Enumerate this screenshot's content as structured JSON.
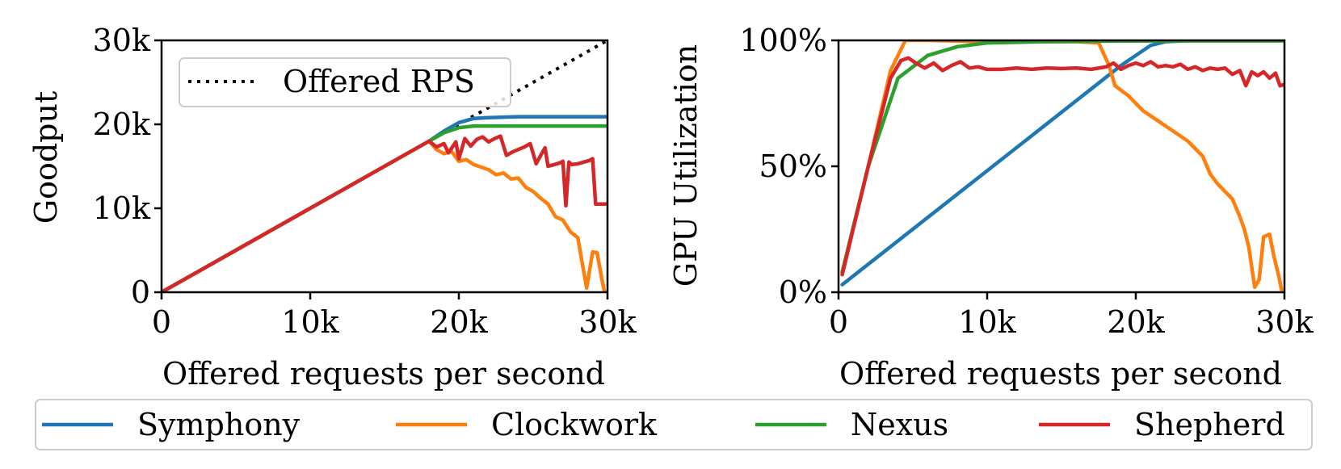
{
  "chart_data": [
    {
      "type": "line",
      "xlabel": "Offered requests per second",
      "ylabel": "Goodput",
      "xlim": [
        0,
        30000
      ],
      "ylim": [
        0,
        30000
      ],
      "xticks": [
        0,
        10000,
        20000,
        30000
      ],
      "xtick_labels": [
        "0",
        "10k",
        "20k",
        "30k"
      ],
      "yticks": [
        0,
        10000,
        20000,
        30000
      ],
      "ytick_labels": [
        "0",
        "10k",
        "20k",
        "30k"
      ],
      "grid": false,
      "legend": {
        "position": "top-left",
        "entries": [
          "Offered RPS"
        ]
      },
      "reference_line": {
        "name": "Offered RPS",
        "style": "dotted",
        "color": "#000000",
        "x": [
          0,
          30000
        ],
        "y": [
          0,
          30000
        ]
      },
      "series": [
        {
          "name": "Symphony",
          "color": "#1f77b4",
          "x": [
            0,
            18000,
            19000,
            20000,
            21000,
            22000,
            24000,
            26000,
            28000,
            30000
          ],
          "y": [
            0,
            18000,
            19200,
            20200,
            20700,
            20800,
            20900,
            20900,
            20900,
            20900
          ]
        },
        {
          "name": "Clockwork",
          "color": "#ff7f0e",
          "x": [
            0,
            18000,
            18500,
            19000,
            19500,
            20000,
            20500,
            21000,
            21500,
            22000,
            22500,
            23000,
            23500,
            24000,
            24500,
            25000,
            25500,
            26000,
            26500,
            27000,
            27500,
            28000,
            28300,
            28600,
            29000,
            29300,
            29600,
            29800
          ],
          "y": [
            0,
            18000,
            17000,
            16500,
            16800,
            15600,
            15800,
            15200,
            14900,
            14600,
            14000,
            14200,
            13500,
            13600,
            12500,
            12000,
            11200,
            10500,
            9000,
            8600,
            7200,
            6500,
            3500,
            500,
            4800,
            4700,
            1800,
            0
          ]
        },
        {
          "name": "Nexus",
          "color": "#2ca02c",
          "x": [
            0,
            18000,
            19000,
            20000,
            21000,
            22000,
            24000,
            26000,
            28000,
            30000
          ],
          "y": [
            0,
            18000,
            19000,
            19600,
            19800,
            19800,
            19800,
            19800,
            19800,
            19800
          ]
        },
        {
          "name": "Shepherd",
          "color": "#d62728",
          "x": [
            0,
            18000,
            18500,
            19000,
            19300,
            19800,
            20000,
            20400,
            20800,
            21200,
            21600,
            22000,
            22400,
            22800,
            23200,
            23600,
            24000,
            24400,
            24800,
            25200,
            25600,
            25800,
            26000,
            26400,
            26800,
            27000,
            27200,
            27400,
            27600,
            28000,
            28400,
            28800,
            29000,
            29200,
            29500,
            30000
          ],
          "y": [
            0,
            18000,
            17300,
            17700,
            16600,
            17900,
            15900,
            18300,
            17400,
            18200,
            18500,
            17900,
            18300,
            18600,
            16300,
            16700,
            17000,
            17300,
            17700,
            15300,
            16600,
            17200,
            15000,
            15200,
            15400,
            15600,
            10300,
            15500,
            15200,
            15300,
            15500,
            15700,
            15900,
            10500,
            10500,
            10500
          ]
        }
      ]
    },
    {
      "type": "line",
      "xlabel": "Offered requests per second",
      "ylabel": "GPU Utilization",
      "xlim": [
        0,
        30000
      ],
      "ylim": [
        0,
        100
      ],
      "xticks": [
        0,
        10000,
        20000,
        30000
      ],
      "xtick_labels": [
        "0",
        "10k",
        "20k",
        "30k"
      ],
      "yticks": [
        0,
        50,
        100
      ],
      "ytick_labels": [
        "0%",
        "50%",
        "100%"
      ],
      "grid": false,
      "series": [
        {
          "name": "Symphony",
          "color": "#1f77b4",
          "x": [
            250,
            19000,
            20000,
            21000,
            22000,
            24000,
            26000,
            28000,
            30000
          ],
          "y": [
            3,
            90,
            94,
            98,
            99.5,
            100,
            100,
            100,
            100
          ]
        },
        {
          "name": "Clockwork",
          "color": "#ff7f0e",
          "x": [
            250,
            2000,
            3500,
            4500,
            6000,
            10000,
            16000,
            17500,
            18200,
            18600,
            19500,
            20500,
            21500,
            22500,
            23500,
            24500,
            25000,
            25500,
            26000,
            26500,
            27000,
            27300,
            27600,
            27800,
            28000,
            28300,
            28600,
            29000,
            29300,
            29600,
            29800
          ],
          "y": [
            8,
            50,
            88,
            100,
            100,
            99.5,
            99.5,
            99,
            90,
            82,
            78,
            72,
            68,
            64,
            60,
            54,
            47,
            43,
            40,
            37,
            30,
            25,
            18,
            10,
            2,
            5,
            22,
            23,
            14,
            7,
            1
          ]
        },
        {
          "name": "Nexus",
          "color": "#2ca02c",
          "x": [
            250,
            2000,
            4000,
            6000,
            8000,
            10000,
            14000,
            18000,
            22000,
            26000,
            30000
          ],
          "y": [
            8,
            50,
            85,
            94,
            97.5,
            99,
            99.5,
            99.7,
            99.8,
            99.8,
            99.8
          ]
        },
        {
          "name": "Shepherd",
          "color": "#d62728",
          "x": [
            250,
            2000,
            3500,
            4200,
            4700,
            5200,
            5800,
            6400,
            7000,
            7600,
            8200,
            8800,
            9400,
            10000,
            11000,
            12000,
            13000,
            14000,
            15000,
            16000,
            17000,
            18000,
            18500,
            19000,
            19500,
            20000,
            20500,
            21000,
            21500,
            22000,
            22500,
            23000,
            23500,
            24000,
            24500,
            25000,
            25500,
            26000,
            26500,
            27000,
            27400,
            27800,
            28200,
            28600,
            29000,
            29400,
            29700,
            30000
          ],
          "y": [
            7,
            50,
            85,
            92,
            93,
            91,
            89,
            91,
            88,
            90,
            91.5,
            89,
            89.5,
            88.5,
            88.5,
            89,
            88.5,
            89,
            88.8,
            89,
            88.5,
            89.5,
            91,
            88.5,
            90,
            91,
            90,
            91.5,
            89.5,
            90,
            89.5,
            90.5,
            88.5,
            89.5,
            88,
            89,
            88.5,
            89,
            86.5,
            88,
            82,
            87.5,
            86,
            87.5,
            85,
            87,
            82,
            82.5
          ]
        }
      ]
    }
  ],
  "legend_bottom": [
    {
      "label": "Symphony",
      "color": "#1f77b4"
    },
    {
      "label": "Clockwork",
      "color": "#ff7f0e"
    },
    {
      "label": "Nexus",
      "color": "#2ca02c"
    },
    {
      "label": "Shepherd",
      "color": "#d62728"
    }
  ]
}
